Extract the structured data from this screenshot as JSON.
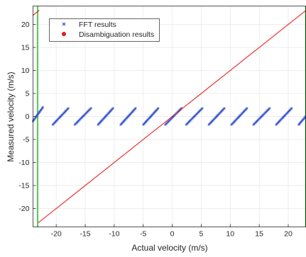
{
  "chart_data": {
    "type": "scatter",
    "xlabel": "Actual velocity (m/s)",
    "ylabel": "Measured velocity (m/s)",
    "xlim": [
      -24,
      23
    ],
    "ylim": [
      -24,
      24
    ],
    "xticks": [
      -20,
      -15,
      -10,
      -5,
      0,
      5,
      10,
      15,
      20
    ],
    "yticks": [
      -20,
      -15,
      -10,
      -5,
      0,
      5,
      10,
      15,
      20
    ],
    "grid": true,
    "legend": {
      "position": "top-left",
      "entries": [
        {
          "label": "FFT results",
          "marker": "x",
          "color": "#1f3fc6"
        },
        {
          "label": "Disambiguation results",
          "marker": "circle",
          "color": "#e41a1c"
        }
      ]
    },
    "series": [
      {
        "name": "FFT results",
        "marker": "x",
        "color": "#1f3fc6",
        "segments": [
          {
            "x": [
              -24.0,
              -22.3
            ],
            "y": [
              -1.0,
              2.0
            ]
          },
          {
            "x": [
              -20.6,
              -17.9
            ],
            "y": [
              -1.8,
              1.8
            ]
          },
          {
            "x": [
              -16.8,
              -14.0
            ],
            "y": [
              -1.8,
              1.8
            ]
          },
          {
            "x": [
              -12.8,
              -10.2
            ],
            "y": [
              -1.8,
              1.8
            ]
          },
          {
            "x": [
              -8.9,
              -6.3
            ],
            "y": [
              -1.8,
              1.8
            ]
          },
          {
            "x": [
              -5.0,
              -2.4
            ],
            "y": [
              -1.8,
              1.8
            ]
          },
          {
            "x": [
              -1.2,
              1.6
            ],
            "y": [
              -1.8,
              1.8
            ]
          },
          {
            "x": [
              2.4,
              5.2
            ],
            "y": [
              -1.8,
              1.8
            ]
          },
          {
            "x": [
              6.3,
              9.0
            ],
            "y": [
              -1.8,
              1.8
            ]
          },
          {
            "x": [
              10.2,
              12.9
            ],
            "y": [
              -1.8,
              1.8
            ]
          },
          {
            "x": [
              14.0,
              16.8
            ],
            "y": [
              -1.8,
              1.8
            ]
          },
          {
            "x": [
              17.9,
              20.6
            ],
            "y": [
              -1.8,
              1.8
            ]
          },
          {
            "x": [
              21.8,
              23.0
            ],
            "y": [
              -1.8,
              0.0
            ]
          }
        ]
      },
      {
        "name": "Disambiguation results",
        "marker": "circle",
        "color": "#e41a1c",
        "segments": [
          {
            "x": [
              -23.0,
              23.0
            ],
            "y": [
              -23.0,
              23.0
            ]
          },
          {
            "x": [
              -24.0,
              -23.0
            ],
            "y": [
              22.0,
              23.0
            ]
          }
        ]
      }
    ],
    "vertical_lines": [
      {
        "x": -23.2,
        "color": "#22c322"
      },
      {
        "x": 23.0,
        "color": "#22c322"
      }
    ]
  }
}
